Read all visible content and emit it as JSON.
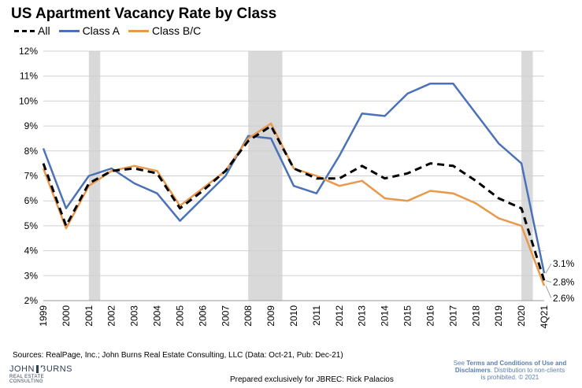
{
  "title": "US Apartment Vacancy Rate by Class",
  "chart_data": {
    "type": "line",
    "title": "US Apartment Vacancy Rate by Class",
    "categories": [
      "1999",
      "2000",
      "2001",
      "2002",
      "2003",
      "2004",
      "2005",
      "2006",
      "2007",
      "2008",
      "2009",
      "2010",
      "2011",
      "2012",
      "2013",
      "2014",
      "2015",
      "2016",
      "2017",
      "2018",
      "2019",
      "2020",
      "4Q21"
    ],
    "y_ticks": [
      "12%",
      "11%",
      "10%",
      "9%",
      "8%",
      "7%",
      "6%",
      "5%",
      "4%",
      "3%",
      "2%"
    ],
    "ylim": [
      2,
      12
    ],
    "legend_position": "top-left",
    "shaded_periods": [
      {
        "from": 2001.0,
        "to": 2001.5
      },
      {
        "from": 2008.0,
        "to": 2009.5
      },
      {
        "from": 2020.0,
        "to": 2020.5
      }
    ],
    "series": [
      {
        "name": "All",
        "color": "#000000",
        "style": "dashed",
        "values": [
          7.5,
          5.0,
          6.7,
          7.2,
          7.3,
          7.1,
          5.7,
          6.4,
          7.2,
          8.4,
          9.0,
          7.3,
          6.9,
          6.9,
          7.4,
          6.9,
          7.1,
          7.5,
          7.4,
          6.8,
          6.1,
          5.7,
          2.8
        ]
      },
      {
        "name": "Class A",
        "color": "#4a72b8",
        "style": "solid",
        "values": [
          8.1,
          5.7,
          7.0,
          7.3,
          6.7,
          6.3,
          5.2,
          6.1,
          7.0,
          8.6,
          8.5,
          6.6,
          6.3,
          7.8,
          9.5,
          9.4,
          10.3,
          10.7,
          10.7,
          9.5,
          8.3,
          7.5,
          3.1
        ]
      },
      {
        "name": "Class B/C",
        "color": "#e8994c",
        "style": "solid",
        "values": [
          7.3,
          4.9,
          6.6,
          7.2,
          7.4,
          7.2,
          5.8,
          6.5,
          7.2,
          8.5,
          9.1,
          7.3,
          7.0,
          6.6,
          6.8,
          6.1,
          6.0,
          6.4,
          6.3,
          5.9,
          5.3,
          5.0,
          2.6
        ]
      }
    ],
    "end_labels": [
      "3.1%",
      "2.8%",
      "2.6%"
    ]
  },
  "legend": {
    "all": "All",
    "class_a": "Class A",
    "class_bc": "Class B/C"
  },
  "sources": "Sources: RealPage, Inc.; John Burns Real Estate Consulting, LLC (Data: Oct-21, Pub: Dec-21)",
  "logo": {
    "main_left": "JOHN",
    "main_right": "BURNS",
    "sub": "REAL ESTATE CONSULTING"
  },
  "prepared": "Prepared exclusively for JBREC: Rick Palacios",
  "disclaimer": {
    "prefix": "See ",
    "link": "Terms and Conditions of Use and Disclaimers",
    "suffix": ". Distribution to non-clients is prohibited. © 2021"
  }
}
